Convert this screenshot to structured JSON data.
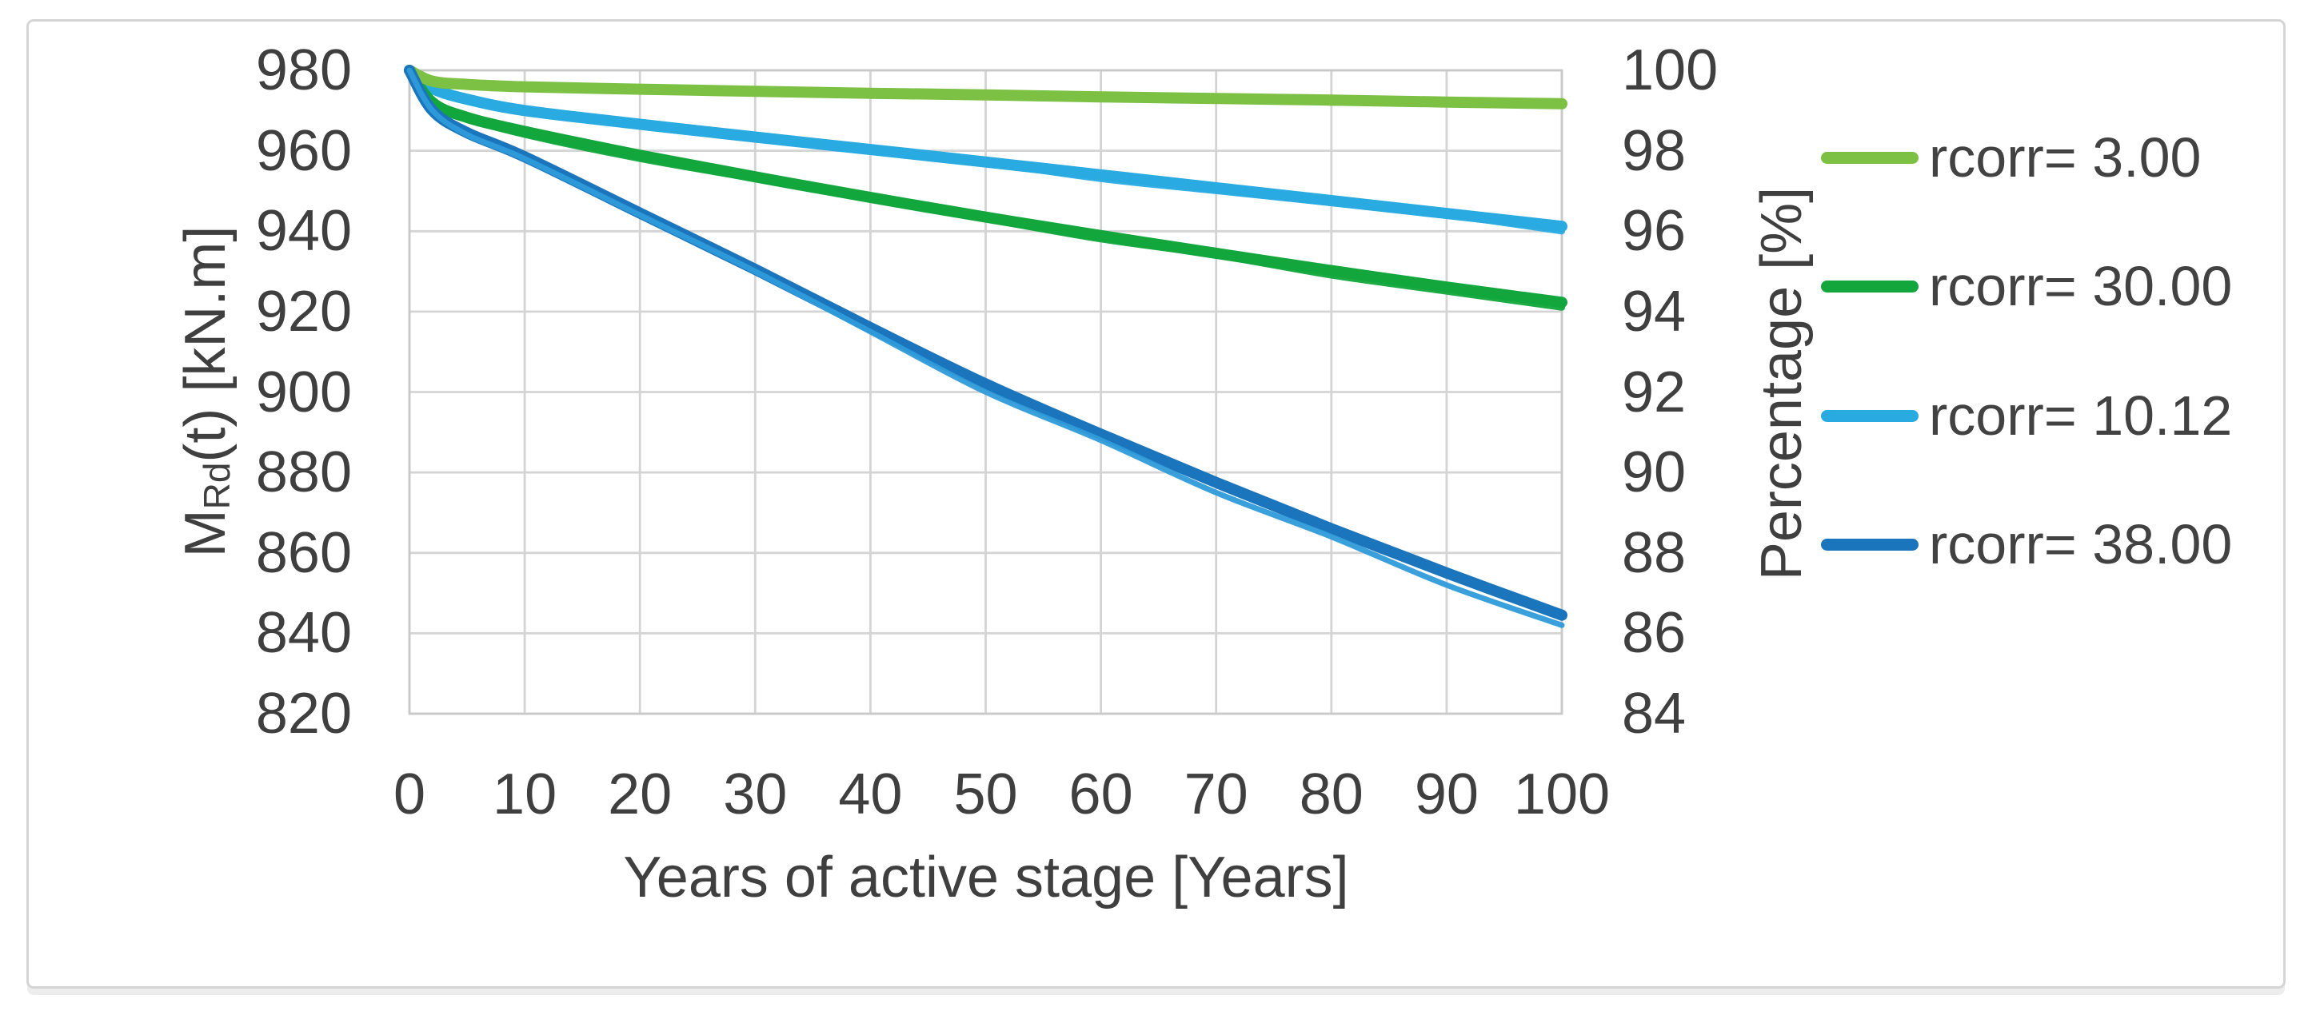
{
  "page": {
    "background": "#ffffff",
    "frame_border_color": "#d5d5d5",
    "gridline_color": "#d4d4d4",
    "plot_border_color": "#c9c9c9",
    "text_color": "#3f3f3f"
  },
  "chart_data": {
    "type": "line",
    "title": "",
    "grid": true,
    "legend_position": "right",
    "x_axis": {
      "label": "Years of active stage [Years]",
      "ticks": [
        0,
        10,
        20,
        30,
        40,
        50,
        60,
        70,
        80,
        90,
        100
      ],
      "range": [
        0,
        100
      ]
    },
    "y_axis_left": {
      "label_main": "M",
      "label_sub": "Rd",
      "label_tail": "(t) [kN.m]",
      "label_full": "MRd(t) [kN.m]",
      "ticks": [
        980,
        960,
        940,
        920,
        900,
        880,
        860,
        840,
        820
      ],
      "range": [
        820,
        980
      ]
    },
    "y_axis_right": {
      "label": "Percentage [%]",
      "ticks": [
        100,
        98,
        96,
        94,
        92,
        90,
        88,
        86,
        84
      ],
      "range": [
        84,
        100
      ]
    },
    "x": [
      0,
      2,
      5,
      10,
      20,
      30,
      40,
      50,
      60,
      70,
      80,
      90,
      100
    ],
    "series": [
      {
        "name": "rcorr= 3.00",
        "color": "#7CC143",
        "values_kNm": [
          980,
          977.3,
          976.5,
          975.9,
          975.3,
          974.8,
          974.3,
          973.9,
          973.4,
          973.0,
          972.6,
          972.1,
          971.7
        ],
        "values_percent": [
          100,
          99.7,
          99.6,
          99.6,
          99.5,
          99.5,
          99.4,
          99.4,
          99.3,
          99.3,
          99.2,
          99.2,
          99.2
        ]
      },
      {
        "name": "rcorr= 30.00",
        "color": "#12A63C",
        "values_kNm": [
          980,
          972.0,
          968.3,
          964.8,
          958.9,
          953.5,
          948.4,
          943.5,
          938.9,
          934.5,
          930.2,
          926.1,
          922.3
        ],
        "values_percent": [
          100,
          99.2,
          98.8,
          98.4,
          97.8,
          97.3,
          96.8,
          96.3,
          95.8,
          95.4,
          94.9,
          94.5,
          94.1
        ]
      },
      {
        "name": "rcorr= 10.12",
        "color": "#29ABE2",
        "values_kNm": [
          980,
          975.5,
          972.8,
          970.0,
          966.6,
          963.4,
          960.3,
          957.2,
          954.0,
          950.8,
          947.6,
          944.4,
          941.2
        ],
        "values_percent": [
          100,
          99.5,
          99.3,
          99.0,
          98.6,
          98.3,
          98.0,
          97.7,
          97.3,
          97.0,
          96.7,
          96.4,
          96.0
        ]
      },
      {
        "name": "rcorr= 38.00",
        "color": "#1B75BC",
        "overlay_color": "#2F9BD9",
        "values_kNm": [
          980,
          970.0,
          964.5,
          958.5,
          944.5,
          930.5,
          916.0,
          902.0,
          889.5,
          877.5,
          866.0,
          855.0,
          844.5
        ],
        "values_percent": [
          100,
          99.0,
          98.4,
          97.8,
          96.4,
          95.0,
          93.5,
          92.0,
          90.8,
          89.5,
          88.4,
          87.2,
          86.2
        ]
      }
    ]
  }
}
